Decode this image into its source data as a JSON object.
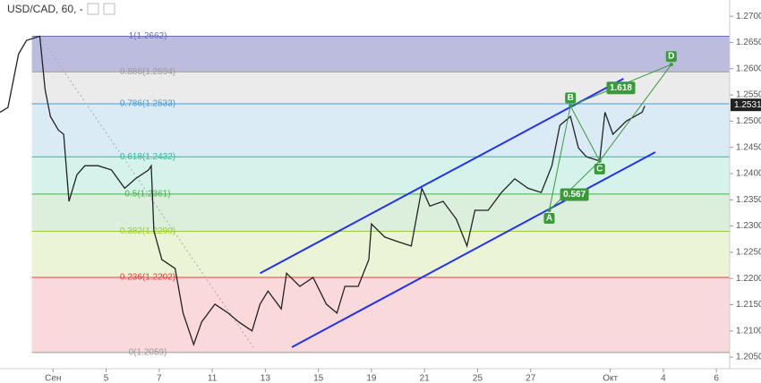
{
  "chart_data": {
    "type": "line",
    "title": "USD/CAD, 60, -",
    "x": [
      0,
      0.3,
      0.7,
      1.0,
      1.5,
      1.7,
      1.9,
      2.2,
      2.4,
      2.6,
      2.9,
      3.2,
      3.7,
      4.2,
      4.7,
      5.1,
      5.6,
      5.7,
      5.8,
      6.1,
      6.6,
      6.9,
      7.3,
      7.6,
      8.1,
      8.6,
      9.0,
      9.5,
      9.8,
      10.1,
      10.6,
      10.8,
      11.3,
      11.8,
      12.3,
      12.7,
      13.0,
      13.5,
      13.9,
      14.0,
      14.5,
      15.0,
      15.5,
      15.9,
      16.2,
      16.7,
      17.2,
      17.6,
      17.9,
      18.4,
      18.9,
      19.4,
      19.9,
      20.4,
      20.8,
      21.1,
      21.5,
      21.8,
      22.1,
      22.6,
      22.8,
      23.1,
      23.6,
      24.2,
      24.3
    ],
    "values": [
      1.2517,
      1.2526,
      1.2628,
      1.2654,
      1.2662,
      1.256,
      1.2509,
      1.2483,
      1.2475,
      1.2347,
      1.2398,
      1.2415,
      1.2415,
      1.2407,
      1.2372,
      1.239,
      1.2407,
      1.2415,
      1.2291,
      1.2236,
      1.2219,
      1.2134,
      1.2074,
      1.2117,
      1.2151,
      1.2134,
      1.2117,
      1.21,
      1.2151,
      1.2176,
      1.2142,
      1.221,
      1.2185,
      1.2202,
      1.2151,
      1.2134,
      1.2185,
      1.2185,
      1.2236,
      1.2304,
      1.2279,
      1.227,
      1.2262,
      1.2372,
      1.2338,
      1.2347,
      1.2313,
      1.2262,
      1.233,
      1.233,
      1.2364,
      1.239,
      1.2372,
      1.2364,
      1.2415,
      1.2492,
      1.2509,
      1.2449,
      1.2432,
      1.2424,
      1.2517,
      1.2475,
      1.25,
      1.2517,
      1.2529
    ],
    "color": "#222222",
    "xlim": [
      0,
      27.5
    ],
    "xticks": [
      {
        "value": 2,
        "label": "Сен"
      },
      {
        "value": 4,
        "label": "5"
      },
      {
        "value": 6,
        "label": "7"
      },
      {
        "value": 8,
        "label": "11"
      },
      {
        "value": 10,
        "label": "13"
      },
      {
        "value": 12,
        "label": "15"
      },
      {
        "value": 14,
        "label": "19"
      },
      {
        "value": 16,
        "label": "21"
      },
      {
        "value": 18,
        "label": "25"
      },
      {
        "value": 20,
        "label": "27"
      },
      {
        "value": 23,
        "label": "Окт"
      },
      {
        "value": 25,
        "label": "4"
      },
      {
        "value": 27,
        "label": "6"
      }
    ],
    "ylim": [
      1.2028,
      1.2731
    ],
    "yticks": [
      {
        "value": 1.205,
        "label": "1.2050"
      },
      {
        "value": 1.21,
        "label": "1.2100"
      },
      {
        "value": 1.215,
        "label": "1.2150"
      },
      {
        "value": 1.22,
        "label": "1.2200"
      },
      {
        "value": 1.225,
        "label": "1.2250"
      },
      {
        "value": 1.23,
        "label": "1.2300"
      },
      {
        "value": 1.235,
        "label": "1.2350"
      },
      {
        "value": 1.24,
        "label": "1.2400"
      },
      {
        "value": 1.245,
        "label": "1.2450"
      },
      {
        "value": 1.25,
        "label": "1.2500"
      },
      {
        "value": 1.255,
        "label": "1.2550"
      },
      {
        "value": 1.26,
        "label": "1.2600"
      },
      {
        "value": 1.265,
        "label": "1.2650"
      },
      {
        "value": 1.27,
        "label": "1.2700"
      }
    ],
    "last_price": {
      "value": 1.2531,
      "label": "1.2531"
    },
    "fib": {
      "x_start": 1.2,
      "levels": [
        {
          "label": "1(1.2662)",
          "value": 1.2662,
          "color": "#6a6ab8"
        },
        {
          "label": "0.886(1.2594)",
          "value": 1.2594,
          "color": "#9a9a9a"
        },
        {
          "label": "0.786(1.2533)",
          "value": 1.2533,
          "color": "#4a9ad4"
        },
        {
          "label": "0.618(1.2432)",
          "value": 1.2432,
          "color": "#2bbd9a"
        },
        {
          "label": "0.5(1.2361)",
          "value": 1.2361,
          "color": "#4caf50"
        },
        {
          "label": "0.382(1.2290)",
          "value": 1.229,
          "color": "#9acd32"
        },
        {
          "label": "0.236(1.2202)",
          "value": 1.2202,
          "color": "#e04040"
        },
        {
          "label": "0(1.2059)",
          "value": 1.2059,
          "color": "#999999"
        }
      ]
    },
    "channel": {
      "color": "#2233ee",
      "lines": [
        {
          "x": [
            9.8,
            23.5
          ],
          "values": [
            1.221,
            1.2581
          ]
        },
        {
          "x": [
            11.0,
            24.7
          ],
          "values": [
            1.2069,
            1.2441
          ]
        }
      ]
    },
    "trendline": {
      "x": [
        1.5,
        9.6
      ],
      "values": [
        1.2662,
        1.2065
      ],
      "color": "#aaaaaa"
    },
    "pattern": {
      "color": "#3a9a3a",
      "points": [
        {
          "label": "A",
          "x": 20.7,
          "value": 1.233
        },
        {
          "label": "B",
          "x": 21.5,
          "value": 1.2529
        },
        {
          "label": "C",
          "x": 22.6,
          "value": 1.2424
        },
        {
          "label": "D",
          "x": 25.3,
          "value": 1.2608
        }
      ],
      "ratios": [
        "1.618",
        "0.567"
      ]
    }
  }
}
